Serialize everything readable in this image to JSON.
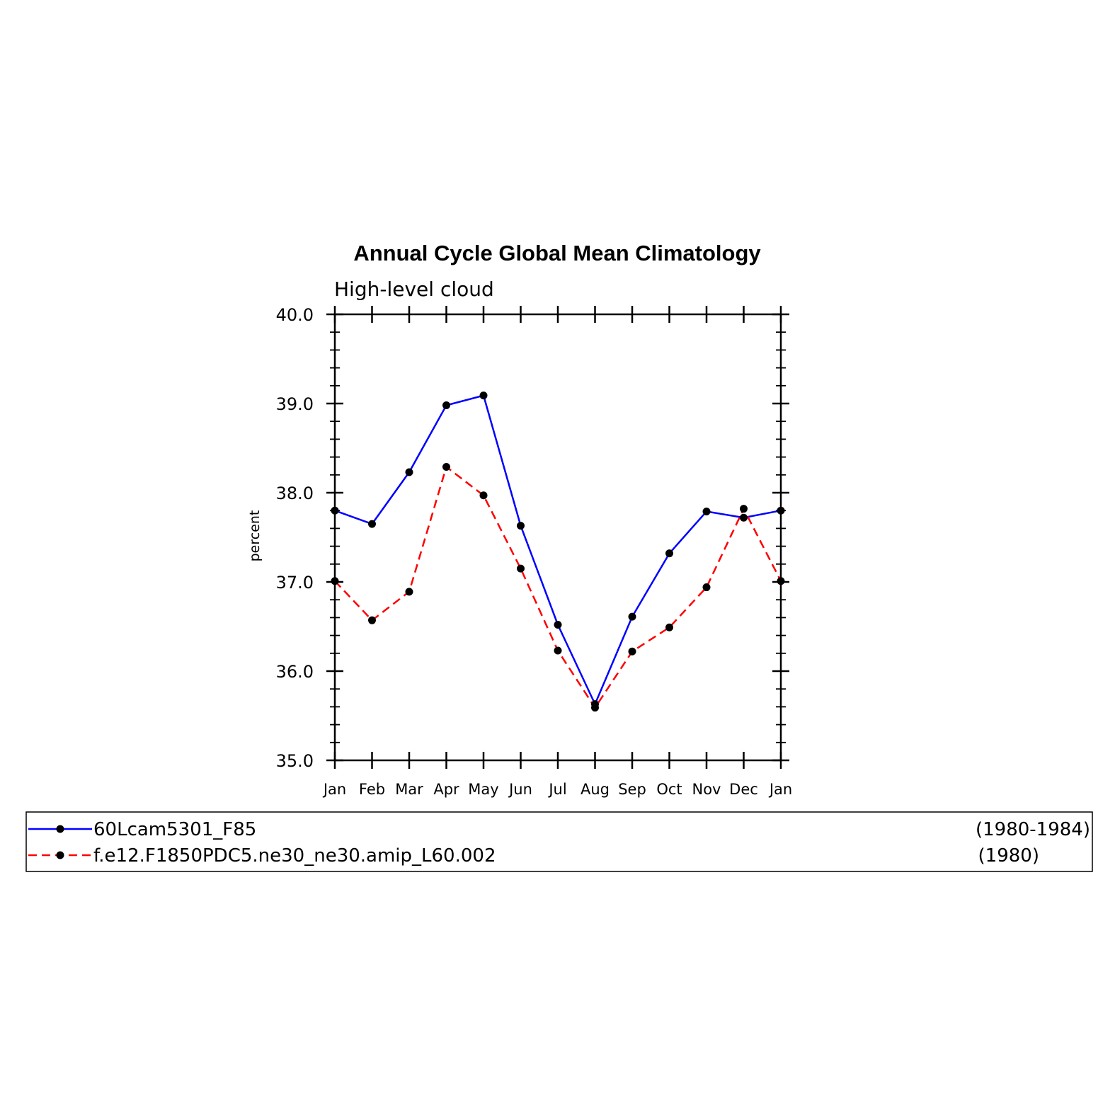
{
  "chart_data": {
    "type": "line",
    "title": "Annual Cycle Global Mean Climatology",
    "subtitle": "High-level cloud",
    "xlabel": "",
    "ylabel": "percent",
    "categories": [
      "Jan",
      "Feb",
      "Mar",
      "Apr",
      "May",
      "Jun",
      "Jul",
      "Aug",
      "Sep",
      "Oct",
      "Nov",
      "Dec",
      "Jan"
    ],
    "ylim": [
      35.0,
      40.0
    ],
    "yticks": [
      "35.0",
      "36.0",
      "37.0",
      "38.0",
      "39.0",
      "40.0"
    ],
    "grid": false,
    "series": [
      {
        "name": "60Lcam5301_F85",
        "period": "(1980-1984)",
        "color": "#0000ff",
        "dash": "solid",
        "marker_color": "#000000",
        "values": [
          37.8,
          37.65,
          38.23,
          38.98,
          39.09,
          37.63,
          36.52,
          35.63,
          36.61,
          37.32,
          37.79,
          37.72,
          37.8
        ]
      },
      {
        "name": "f.e12.F1850PDC5.ne30_ne30.amip_L60.002",
        "period": "(1980)",
        "color": "#ff0000",
        "dash": "dashed",
        "marker_color": "#000000",
        "values": [
          37.01,
          36.57,
          36.89,
          38.29,
          37.97,
          37.15,
          36.23,
          35.59,
          36.22,
          36.49,
          36.94,
          37.82,
          37.01
        ]
      }
    ]
  }
}
